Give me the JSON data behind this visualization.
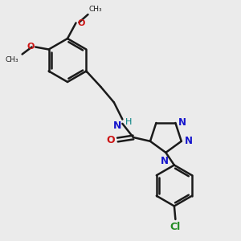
{
  "background_color": "#ebebeb",
  "bond_color": "#1a1a1a",
  "bond_width": 1.8,
  "N_color": "#1414cc",
  "O_color": "#cc1414",
  "Cl_color": "#228B22",
  "H_color": "#008080",
  "figsize": [
    3.0,
    3.0
  ],
  "dpi": 100,
  "xlim": [
    0,
    10
  ],
  "ylim": [
    0,
    10
  ]
}
